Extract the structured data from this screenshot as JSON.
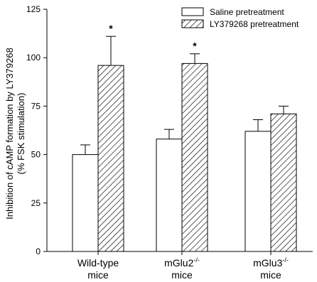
{
  "chart_data": {
    "type": "bar",
    "title": "",
    "xlabel": "",
    "ylabel": [
      "Inhibition of cAMP formation by LY379268",
      "(% FSK stimulation)"
    ],
    "ylim": [
      0,
      125
    ],
    "yticks": [
      0,
      25,
      50,
      75,
      100,
      125
    ],
    "categories": [
      {
        "line1": "Wild-type",
        "base": "mGlu2",
        "sup": "",
        "line2": "mice"
      },
      {
        "line1": "",
        "base": "mGlu2",
        "sup": "-/-",
        "line2": "mice"
      },
      {
        "line1": "",
        "base": "mGlu3",
        "sup": "-/-",
        "line2": "mice"
      }
    ],
    "series": [
      {
        "name": "Saline pretreatment",
        "pattern": "open",
        "values": [
          50,
          58,
          62
        ],
        "errors": [
          5,
          5,
          6
        ]
      },
      {
        "name": "LY379268 pretreatment",
        "pattern": "hatched",
        "values": [
          96,
          97,
          71
        ],
        "errors": [
          15,
          5,
          4
        ]
      }
    ],
    "annotations": [
      {
        "text": "*",
        "category_index": 0,
        "series_index": 1
      },
      {
        "text": "*",
        "category_index": 1,
        "series_index": 1
      }
    ],
    "legend_position": "top-right",
    "grid": false
  }
}
